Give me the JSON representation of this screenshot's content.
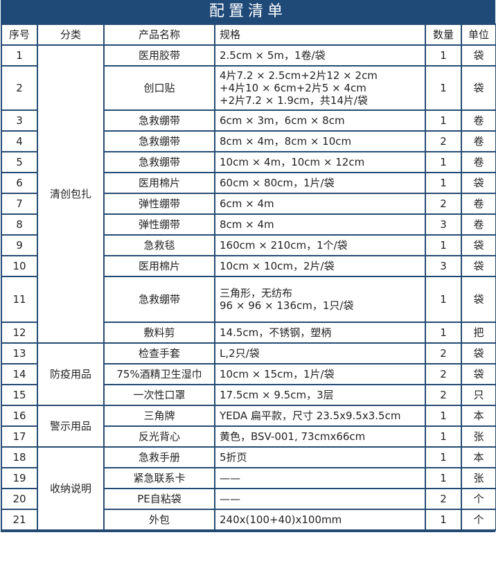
{
  "title": "配置清单",
  "headers": [
    "序号",
    "分类",
    "产品名称",
    "规格",
    "数量",
    "单位"
  ],
  "categories": [
    "清创包扎",
    "防疫用品",
    "警示用品",
    "收纳说明"
  ],
  "rows": [
    {
      "no": "1",
      "name": "医用胶带",
      "spec": "2.5cm × 5m，1卷/袋",
      "qty": "1",
      "unit": "袋"
    },
    {
      "no": "2",
      "name": "创口贴",
      "spec": "4片7.2 × 2.5cm+2片12 × 2cm\n+4片10 × 6cm+2片5 × 4cm\n+2片7.2 × 1.9cm，共14片/袋",
      "qty": "1",
      "unit": "袋"
    },
    {
      "no": "3",
      "name": "急救绷带",
      "spec": "6cm × 3m，6cm × 8cm",
      "qty": "1",
      "unit": "卷"
    },
    {
      "no": "4",
      "name": "急救绷带",
      "spec": "8cm × 4m，8cm × 10cm",
      "qty": "2",
      "unit": "卷"
    },
    {
      "no": "5",
      "name": "急救绷带",
      "spec": "10cm × 4m，10cm × 12cm",
      "qty": "1",
      "unit": "卷"
    },
    {
      "no": "6",
      "name": "医用棉片",
      "spec": "60cm × 80cm，1片/袋",
      "qty": "1",
      "unit": "袋"
    },
    {
      "no": "7",
      "name": "弹性绷带",
      "spec": "6cm × 4m",
      "qty": "2",
      "unit": "卷"
    },
    {
      "no": "8",
      "name": "弹性绷带",
      "spec": "8cm × 4m",
      "qty": "3",
      "unit": "卷"
    },
    {
      "no": "9",
      "name": "急救毯",
      "spec": "160cm × 210cm，1个/袋",
      "qty": "1",
      "unit": "袋"
    },
    {
      "no": "10",
      "name": "医用棉片",
      "spec": "10cm × 10cm，2片/袋",
      "qty": "3",
      "unit": "袋"
    },
    {
      "no": "11",
      "name": "急救绷带",
      "spec": "三角形，无纺布\n96 × 96 × 136cm，1只/袋",
      "qty": "1",
      "unit": "袋"
    },
    {
      "no": "12",
      "name": "敷料剪",
      "spec": "14.5cm，不锈钢，塑柄",
      "qty": "1",
      "unit": "把"
    },
    {
      "no": "13",
      "name": "检查手套",
      "spec": "L,2只/袋",
      "qty": "2",
      "unit": "袋"
    },
    {
      "no": "14",
      "name": "75%酒精卫生湿巾",
      "spec": "10cm × 15cm，1片/袋",
      "qty": "2",
      "unit": "袋"
    },
    {
      "no": "15",
      "name": "一次性口罩",
      "spec": "17.5cm × 9.5cm，3层",
      "qty": "2",
      "unit": "只"
    },
    {
      "no": "16",
      "name": "三角牌",
      "spec": "YEDA 扁平款，尺寸 23.5x9.5x3.5cm",
      "qty": "1",
      "unit": "本"
    },
    {
      "no": "17",
      "name": "反光背心",
      "spec": "黄色，BSV-001, 73cmx66cm",
      "qty": "1",
      "unit": "张"
    },
    {
      "no": "18",
      "name": "急救手册",
      "spec": "5折页",
      "qty": "1",
      "unit": "本"
    },
    {
      "no": "19",
      "name": "紧急联系卡",
      "spec": "——",
      "qty": "1",
      "unit": "张"
    },
    {
      "no": "20",
      "name": "PE自粘袋",
      "spec": "——",
      "qty": "2",
      "unit": "个"
    },
    {
      "no": "21",
      "name": "外包",
      "spec": "240x(100+40)x100mm",
      "qty": "1",
      "unit": "个"
    }
  ]
}
